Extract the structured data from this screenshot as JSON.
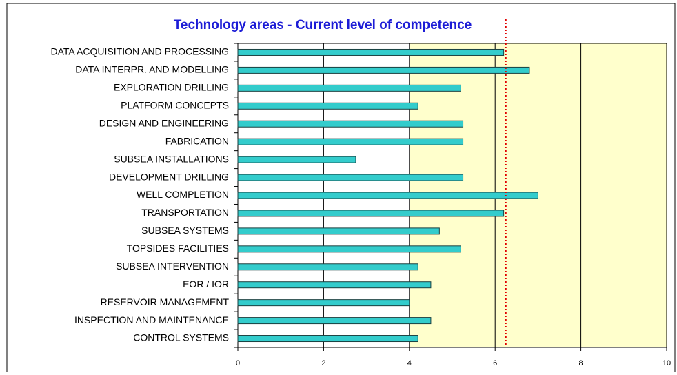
{
  "chart_data": {
    "type": "barh",
    "title": "Technology areas - Current level of competence",
    "categories": [
      "DATA ACQUISITION AND PROCESSING",
      "DATA INTERPR. AND MODELLING",
      "EXPLORATION DRILLING",
      "PLATFORM CONCEPTS",
      "DESIGN AND ENGINEERING",
      "FABRICATION",
      "SUBSEA INSTALLATIONS",
      "DEVELOPMENT DRILLING",
      "WELL COMPLETION",
      "TRANSPORTATION",
      "SUBSEA SYSTEMS",
      "TOPSIDES FACILITIES",
      "SUBSEA INTERVENTION",
      "EOR / IOR",
      "RESERVOIR MANAGEMENT",
      "INSPECTION AND MAINTENANCE",
      "CONTROL SYSTEMS"
    ],
    "values": [
      6.2,
      6.8,
      5.2,
      4.2,
      5.25,
      5.25,
      2.75,
      5.25,
      7.0,
      6.2,
      4.7,
      5.2,
      4.2,
      4.5,
      4.0,
      4.5,
      4.2
    ],
    "color": "#33cccc",
    "xlim": [
      0,
      10
    ],
    "xticks": [
      0,
      2,
      4,
      6,
      8,
      10
    ],
    "grid": true,
    "shaded_xrange": [
      4,
      10
    ],
    "shade_color": "#ffffcc",
    "reference_line": 6.25,
    "reference_color": "#e00000"
  }
}
